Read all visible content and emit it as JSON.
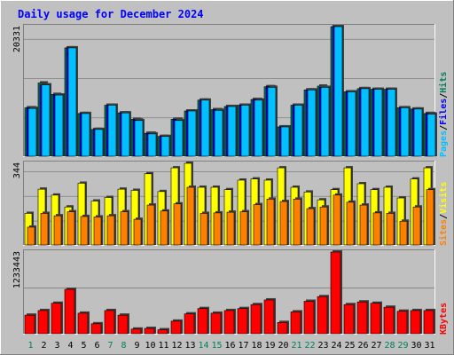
{
  "chart_data": {
    "type": "bar",
    "title": "Daily usage for December 2024",
    "x": [
      1,
      2,
      3,
      4,
      5,
      6,
      7,
      8,
      9,
      10,
      11,
      12,
      13,
      14,
      15,
      16,
      17,
      18,
      19,
      20,
      21,
      22,
      23,
      24,
      25,
      26,
      27,
      28,
      29,
      30,
      31
    ],
    "weekend_days": [
      1,
      7,
      8,
      14,
      15,
      21,
      22,
      28,
      29
    ],
    "colors": {
      "hits": "#00805c",
      "files": "#0000ff",
      "pages": "#00c0ff",
      "visits": "#ffff00",
      "sites": "#ff8000",
      "kbytes": "#ff0000",
      "weekday_label": "#000000",
      "weekend_label": "#00805c",
      "title": "#0000ff"
    },
    "panels": [
      {
        "ymax_label": "20331",
        "ymax": 20331,
        "gridlines": 3,
        "series": [
          {
            "name": "Hits",
            "values": [
              7600,
              11500,
              9700,
              17000,
              6700,
              4200,
              8000,
              6800,
              5800,
              3600,
              3100,
              5800,
              7100,
              8800,
              7300,
              7800,
              8000,
              8900,
              10900,
              4600,
              8000,
              10400,
              11000,
              20331,
              10100,
              10600,
              10500,
              10500,
              7600,
              7400,
              6700
            ]
          },
          {
            "name": "Files",
            "values": [
              7600,
              11200,
              9600,
              17000,
              6700,
              4200,
              8000,
              6800,
              5700,
              3600,
              3100,
              5800,
              7100,
              8800,
              7300,
              7800,
              8000,
              8900,
              10900,
              4600,
              8000,
              10400,
              10800,
              20331,
              10100,
              10600,
              10500,
              10500,
              7600,
              7400,
              6700
            ]
          },
          {
            "name": "Pages",
            "values": [
              7500,
              11200,
              9600,
              17000,
              6700,
              4200,
              8000,
              6800,
              5600,
              3500,
              3100,
              5600,
              7100,
              8800,
              7200,
              7800,
              8000,
              8800,
              10800,
              4600,
              8000,
              10400,
              10800,
              20331,
              10100,
              10600,
              10500,
              10500,
              7600,
              7400,
              6600
            ]
          }
        ],
        "label_parts": [
          "Pages",
          "Files",
          "Hits"
        ]
      },
      {
        "ymax_label": "344",
        "ymax": 344,
        "gridlines": 3,
        "series": [
          {
            "name": "Visits",
            "values": [
              133,
              235,
              210,
              160,
              260,
              185,
              200,
              235,
              230,
              300,
              225,
              325,
              344,
              243,
              243,
              233,
              273,
              278,
              273,
              325,
              243,
              223,
              190,
              233,
              325,
              258,
              233,
              243,
              198,
              278,
              325
            ]
          },
          {
            "name": "Sites",
            "values": [
              75,
              133,
              123,
              140,
              120,
              118,
              123,
              140,
              108,
              168,
              143,
              173,
              243,
              133,
              135,
              138,
              140,
              170,
              193,
              183,
              193,
              153,
              160,
              210,
              180,
              168,
              135,
              133,
              100,
              160,
              233
            ]
          }
        ],
        "label_parts": [
          "Sites",
          "Visits"
        ]
      },
      {
        "ymax_label": "1233443",
        "ymax": 1233443,
        "gridlines": 1,
        "series": [
          {
            "name": "KBytes",
            "values": [
              280000,
              350000,
              460000,
              670000,
              310000,
              150000,
              350000,
              280000,
              70000,
              80000,
              60000,
              190000,
              300000,
              380000,
              310000,
              350000,
              380000,
              440000,
              510000,
              170000,
              330000,
              490000,
              560000,
              1233443,
              440000,
              480000,
              460000,
              400000,
              340000,
              350000,
              350000
            ]
          }
        ],
        "label_parts": [
          "KBytes"
        ]
      }
    ]
  }
}
